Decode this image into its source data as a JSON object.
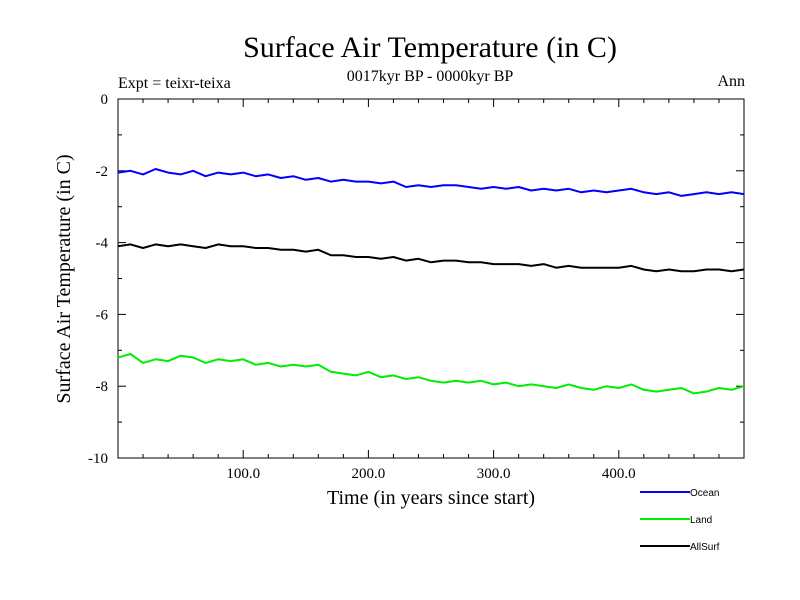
{
  "chart_data": {
    "type": "line",
    "title": "Surface Air Temperature (in C)",
    "subtitle": "0017kyr BP - 0000kyr BP",
    "left_annotation": "Expt = teixr-teixa",
    "right_annotation": "Ann",
    "xlabel": "Time (in years since start)",
    "ylabel": "Surface Air Temperature (in C)",
    "xlim": [
      0,
      500
    ],
    "ylim": [
      -10,
      0
    ],
    "x_ticks": [
      100,
      200,
      300,
      400
    ],
    "x_tick_labels": [
      "100.0",
      "200.0",
      "300.0",
      "400.0"
    ],
    "y_ticks": [
      0,
      -2,
      -4,
      -6,
      -8,
      -10
    ],
    "y_tick_labels": [
      "0",
      "-2",
      "-4",
      "-6",
      "-8",
      "-10"
    ],
    "grid": false,
    "legend_position": "bottom-right, outside plot",
    "x": [
      0,
      10,
      20,
      30,
      40,
      50,
      60,
      70,
      80,
      90,
      100,
      110,
      120,
      130,
      140,
      150,
      160,
      170,
      180,
      190,
      200,
      210,
      220,
      230,
      240,
      250,
      260,
      270,
      280,
      290,
      300,
      310,
      320,
      330,
      340,
      350,
      360,
      370,
      380,
      390,
      400,
      410,
      420,
      430,
      440,
      450,
      460,
      470,
      480,
      490,
      500
    ],
    "series": [
      {
        "name": "Ocean",
        "color": "#0000ff",
        "values": [
          -2.05,
          -2.0,
          -2.1,
          -1.95,
          -2.05,
          -2.1,
          -2.0,
          -2.15,
          -2.05,
          -2.1,
          -2.05,
          -2.15,
          -2.1,
          -2.2,
          -2.15,
          -2.25,
          -2.2,
          -2.3,
          -2.25,
          -2.3,
          -2.3,
          -2.35,
          -2.3,
          -2.45,
          -2.4,
          -2.45,
          -2.4,
          -2.4,
          -2.45,
          -2.5,
          -2.45,
          -2.5,
          -2.45,
          -2.55,
          -2.5,
          -2.55,
          -2.5,
          -2.6,
          -2.55,
          -2.6,
          -2.55,
          -2.5,
          -2.6,
          -2.65,
          -2.6,
          -2.7,
          -2.65,
          -2.6,
          -2.65,
          -2.6,
          -2.65
        ]
      },
      {
        "name": "Land",
        "color": "#00ee00",
        "values": [
          -7.2,
          -7.1,
          -7.35,
          -7.25,
          -7.3,
          -7.15,
          -7.2,
          -7.35,
          -7.25,
          -7.3,
          -7.25,
          -7.4,
          -7.35,
          -7.45,
          -7.4,
          -7.45,
          -7.4,
          -7.6,
          -7.65,
          -7.7,
          -7.6,
          -7.75,
          -7.7,
          -7.8,
          -7.75,
          -7.85,
          -7.9,
          -7.85,
          -7.9,
          -7.85,
          -7.95,
          -7.9,
          -8.0,
          -7.95,
          -8.0,
          -8.05,
          -7.95,
          -8.05,
          -8.1,
          -8.0,
          -8.05,
          -7.95,
          -8.1,
          -8.15,
          -8.1,
          -8.05,
          -8.2,
          -8.15,
          -8.05,
          -8.1,
          -8.0
        ]
      },
      {
        "name": "AllSurf",
        "color": "#000000",
        "values": [
          -4.1,
          -4.05,
          -4.15,
          -4.05,
          -4.1,
          -4.05,
          -4.1,
          -4.15,
          -4.05,
          -4.1,
          -4.1,
          -4.15,
          -4.15,
          -4.2,
          -4.2,
          -4.25,
          -4.2,
          -4.35,
          -4.35,
          -4.4,
          -4.4,
          -4.45,
          -4.4,
          -4.5,
          -4.45,
          -4.55,
          -4.5,
          -4.5,
          -4.55,
          -4.55,
          -4.6,
          -4.6,
          -4.6,
          -4.65,
          -4.6,
          -4.7,
          -4.65,
          -4.7,
          -4.7,
          -4.7,
          -4.7,
          -4.65,
          -4.75,
          -4.8,
          -4.75,
          -4.8,
          -4.8,
          -4.75,
          -4.75,
          -4.8,
          -4.75
        ]
      }
    ]
  }
}
